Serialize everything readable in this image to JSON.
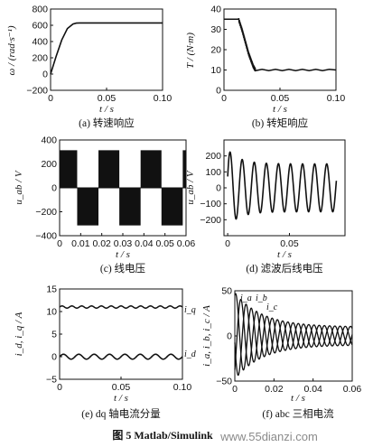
{
  "figure_caption": "图 5 Matlab/Simulink",
  "watermark": "www.55dianzi.com",
  "chart_data": [
    {
      "id": "a",
      "type": "line",
      "caption": "(a) 转速响应",
      "xlabel": "t / s",
      "ylabel": "ω / (rad·s⁻¹)",
      "xlim": [
        0,
        0.1
      ],
      "ylim": [
        -200,
        800
      ],
      "xticks": [
        "0",
        "0.05",
        "0.10"
      ],
      "xtick_values": [
        0,
        0.05,
        0.1
      ],
      "yticks": [
        "800",
        "600",
        "400",
        "200",
        "0",
        "−200"
      ],
      "ytick_values": [
        800,
        600,
        400,
        200,
        0,
        -200
      ],
      "series": [
        {
          "x": [
            0,
            0.005,
            0.01,
            0.015,
            0.02,
            0.023,
            0.026,
            0.1
          ],
          "y": [
            0,
            220,
            420,
            560,
            615,
            627,
            628,
            628
          ]
        }
      ]
    },
    {
      "id": "b",
      "type": "line",
      "caption": "(b) 转矩响应",
      "xlabel": "t / s",
      "ylabel": "T / (N·m)",
      "xlim": [
        0,
        0.1
      ],
      "ylim": [
        0,
        40
      ],
      "xticks": [
        "0",
        "0.05",
        "0.10"
      ],
      "xtick_values": [
        0,
        0.05,
        0.1
      ],
      "yticks": [
        "40",
        "30",
        "20",
        "10",
        "0"
      ],
      "ytick_values": [
        40,
        30,
        20,
        10,
        0
      ],
      "series": [
        {
          "x": [
            0,
            0.013,
            0.016,
            0.018,
            0.02,
            0.022,
            0.024,
            0.026,
            0.028,
            0.1
          ],
          "y": [
            35,
            35,
            30,
            26,
            22,
            18,
            15,
            12,
            10,
            10
          ]
        }
      ]
    },
    {
      "id": "c",
      "type": "line",
      "caption": "(c) 线电压",
      "xlabel": "t / s",
      "ylabel": "u_ab / V",
      "xlim": [
        0,
        0.06
      ],
      "ylim": [
        -400,
        400
      ],
      "xticks": [
        "0",
        "0.01",
        "0.02",
        "0.03",
        "0.04",
        "0.05",
        "0.06"
      ],
      "xtick_values": [
        0,
        0.01,
        0.02,
        0.03,
        0.04,
        0.05,
        0.06
      ],
      "yticks": [
        "400",
        "200",
        "0",
        "−200",
        "−400"
      ],
      "ytick_values": [
        400,
        200,
        0,
        -200,
        -400
      ],
      "pwm_amplitude": 310
    },
    {
      "id": "d",
      "type": "line",
      "caption": "(d) 滤波后线电压",
      "xlabel": "t / s",
      "ylabel": "u_ab / V",
      "xlim": [
        -0.003,
        0.095
      ],
      "ylim": [
        -300,
        300
      ],
      "xticks": [
        "0",
        "0.05"
      ],
      "xtick_values": [
        0,
        0.05
      ],
      "yticks": [
        "200",
        "100",
        "0",
        "−100",
        "−200"
      ],
      "ytick_values": [
        200,
        100,
        0,
        -100,
        -200
      ],
      "amplitude": 150,
      "periods": 9
    },
    {
      "id": "e",
      "type": "line",
      "caption": "(e) dq 轴电流分量",
      "xlabel": "t / s",
      "ylabel": "i_d, i_q / A",
      "xlim": [
        0,
        0.1
      ],
      "ylim": [
        -5,
        15
      ],
      "xticks": [
        "0",
        "0.05",
        "0.10"
      ],
      "xtick_values": [
        0,
        0.05,
        0.1
      ],
      "yticks": [
        "15",
        "10",
        "5",
        "0",
        "−5"
      ],
      "ytick_values": [
        15,
        10,
        5,
        0,
        -5
      ],
      "series": [
        {
          "name": "i_q",
          "level": 11
        },
        {
          "name": "i_d",
          "level": 0
        }
      ]
    },
    {
      "id": "f",
      "type": "line",
      "caption": "(f) abc 三相电流",
      "xlabel": "t / s",
      "ylabel": "i_a, i_b, i_c / A",
      "xlim": [
        0,
        0.06
      ],
      "ylim": [
        -50,
        50
      ],
      "xticks": [
        "0",
        "0.02",
        "0.04",
        "0.06"
      ],
      "xtick_values": [
        0,
        0.02,
        0.04,
        0.06
      ],
      "yticks": [
        "50",
        "0",
        "−50"
      ],
      "ytick_values": [
        50,
        0,
        -50
      ],
      "series": [
        {
          "name": "i_a"
        },
        {
          "name": "i_b"
        },
        {
          "name": "i_c"
        }
      ]
    }
  ]
}
